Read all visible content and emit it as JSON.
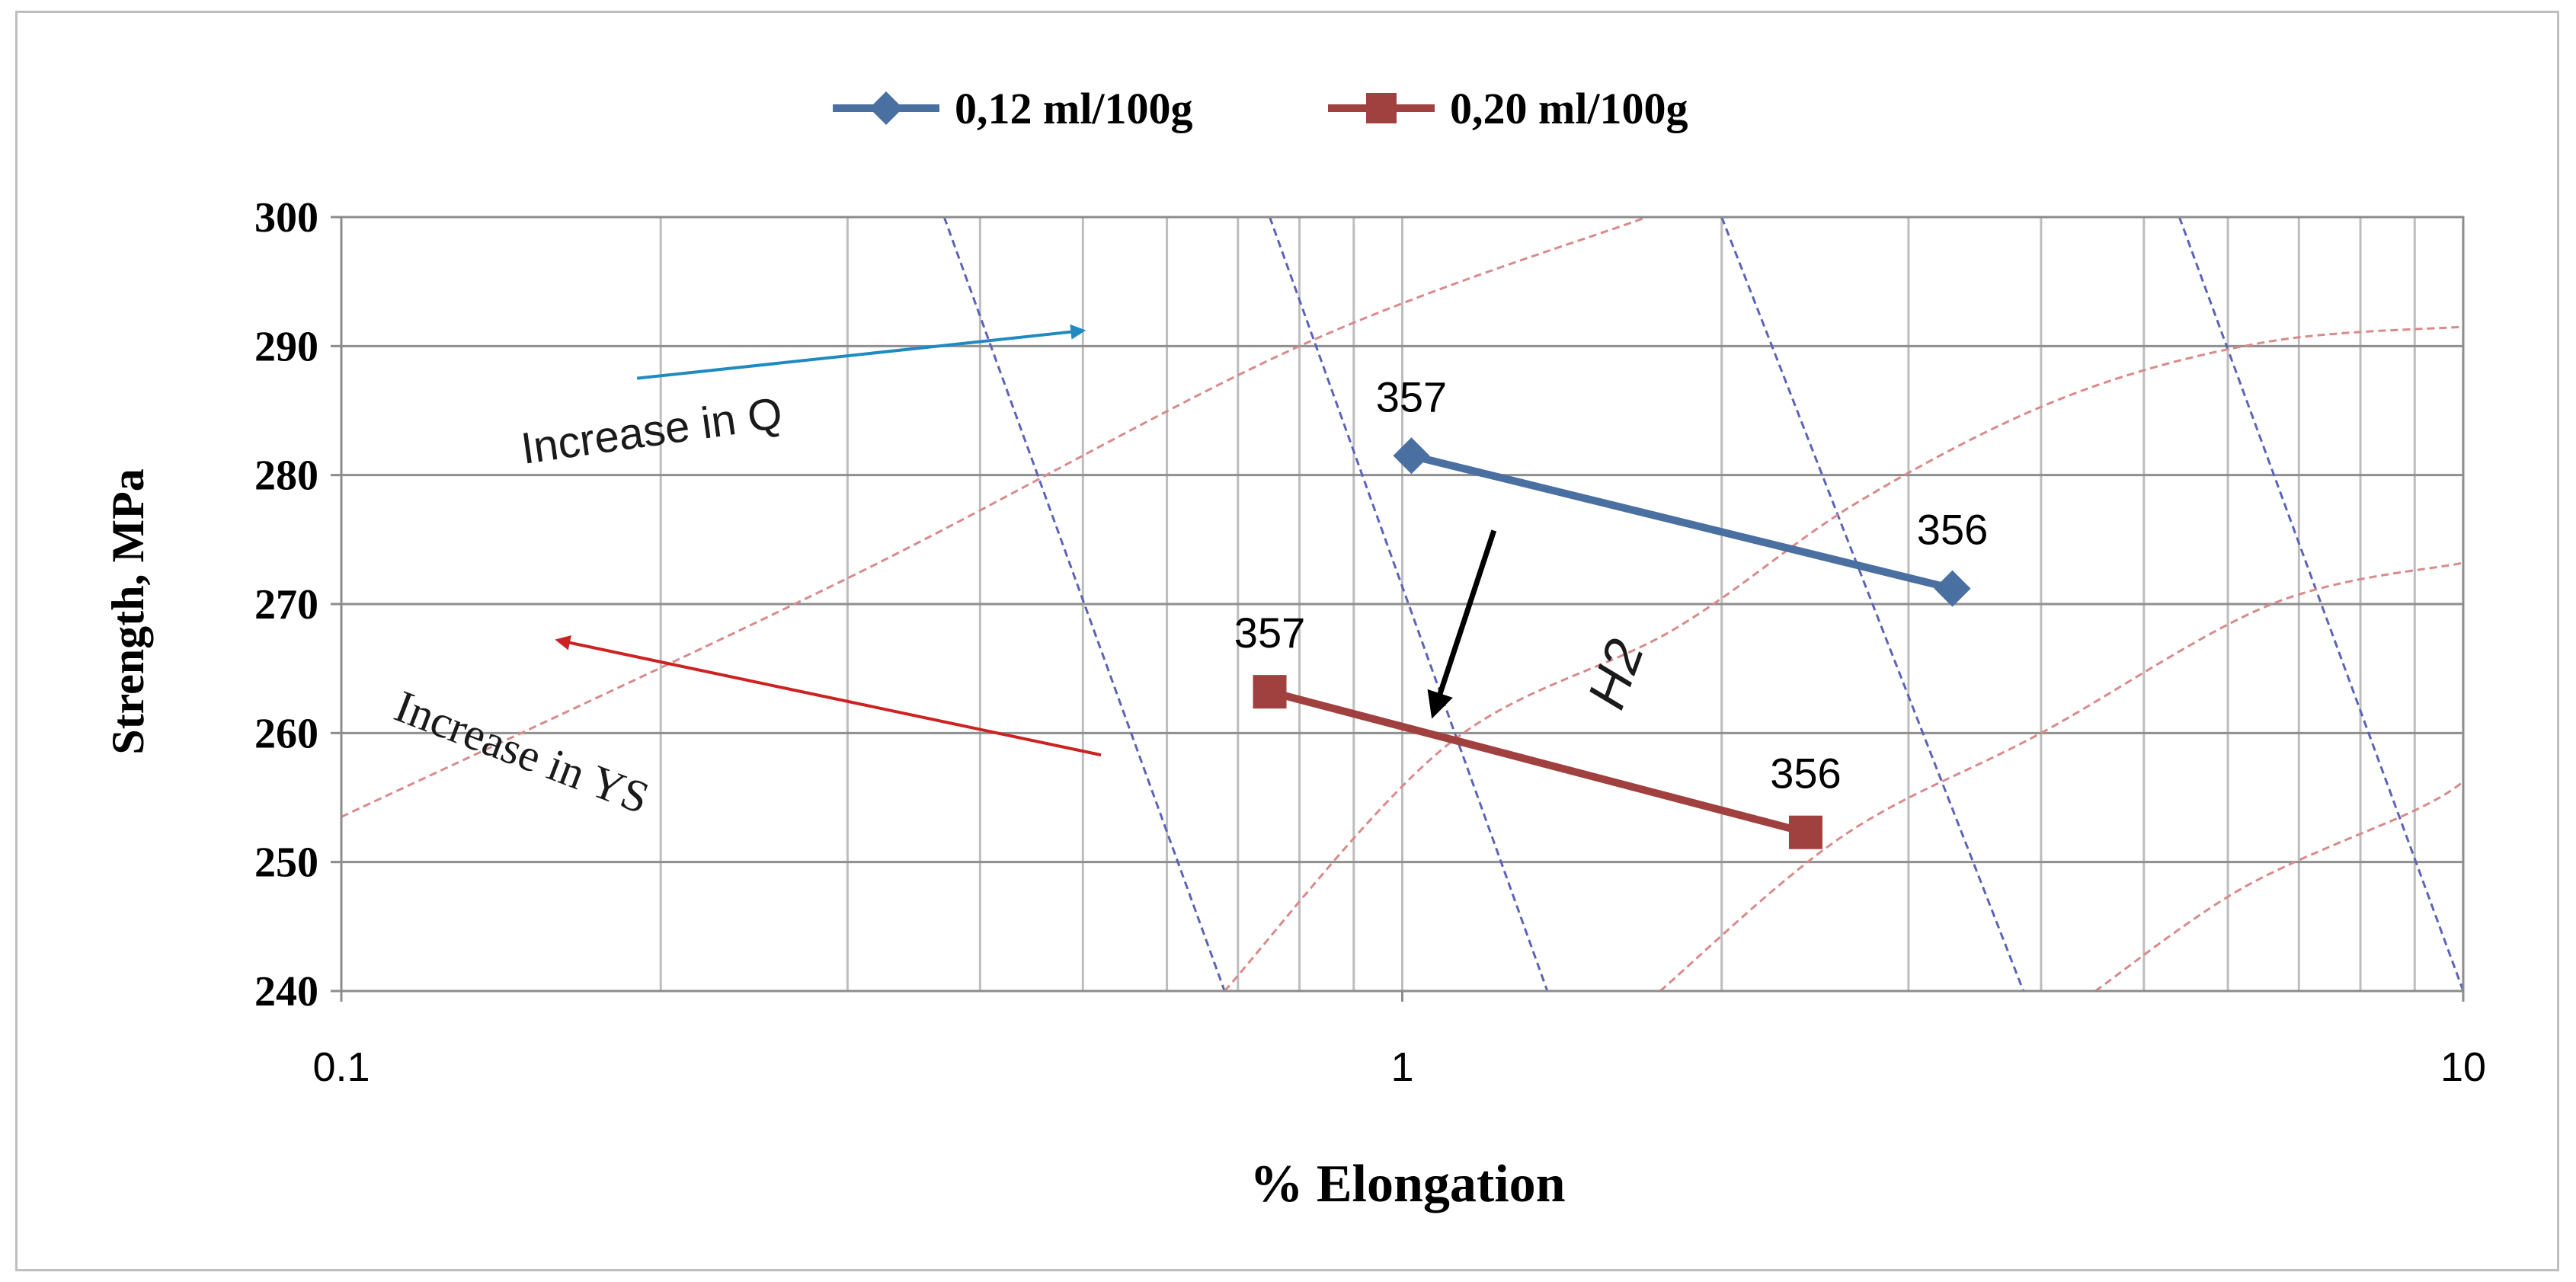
{
  "chart_data": {
    "type": "scatter",
    "x_scale": "log",
    "xlim": [
      0.1,
      10
    ],
    "ylim": [
      240,
      300
    ],
    "xlabel": "% Elongation",
    "ylabel": "Strength, MPa",
    "x_ticks": [
      "0.1",
      "1",
      "10"
    ],
    "y_ticks": [
      "240",
      "250",
      "260",
      "270",
      "280",
      "290",
      "300"
    ],
    "grid": true,
    "legend_position": "top",
    "series": [
      {
        "name": "0,12 ml/100g",
        "color": "#4a6fa1",
        "marker": "diamond",
        "points": [
          {
            "x": 1.02,
            "y": 281.5,
            "label": "357"
          },
          {
            "x": 3.3,
            "y": 271.2,
            "label": "356"
          }
        ]
      },
      {
        "name": "0,20 ml/100g",
        "color": "#a0403f",
        "marker": "square",
        "points": [
          {
            "x": 0.75,
            "y": 263.2,
            "label": "357"
          },
          {
            "x": 2.4,
            "y": 252.3,
            "label": "356"
          }
        ]
      }
    ],
    "iso_q_lines": [
      {
        "x_at_300": 0.37,
        "x_at_240": 0.68
      },
      {
        "x_at_300": 0.75,
        "x_at_240": 1.37
      },
      {
        "x_at_300": 2.0,
        "x_at_240": 3.85
      },
      {
        "x_at_300": 5.4,
        "x_at_240": 10.0
      }
    ],
    "iso_ys_curves": [
      {
        "points": [
          [
            0.1,
            253.5
          ],
          [
            0.3,
            272
          ],
          [
            0.8,
            290
          ],
          [
            1.7,
            300
          ]
        ]
      },
      {
        "points": [
          [
            0.68,
            240
          ],
          [
            1.1,
            259
          ],
          [
            1.8,
            268
          ],
          [
            2.7,
            278
          ],
          [
            4.2,
            286
          ],
          [
            6.5,
            290.3
          ],
          [
            10,
            291.5
          ]
        ]
      },
      {
        "points": [
          [
            1.75,
            240
          ],
          [
            2.6,
            252
          ],
          [
            4.0,
            260
          ],
          [
            6.6,
            270
          ],
          [
            10,
            273.2
          ]
        ]
      },
      {
        "points": [
          [
            4.5,
            240
          ],
          [
            6.2,
            248
          ],
          [
            9.0,
            254
          ],
          [
            10,
            256.2
          ]
        ]
      }
    ],
    "annotations": [
      {
        "text": "Increase in Q",
        "color": "#1f8ac0",
        "from": [
          0.19,
          287.5
        ],
        "to": [
          0.5,
          291.2
        ]
      },
      {
        "text": "Increase in YS",
        "color": "#cc2222",
        "from": [
          0.52,
          258.3
        ],
        "to": [
          0.16,
          267.2
        ]
      },
      {
        "text": "H2",
        "color": "#000000",
        "from": [
          1.22,
          275.7
        ],
        "to": [
          1.07,
          261.5
        ]
      }
    ]
  }
}
